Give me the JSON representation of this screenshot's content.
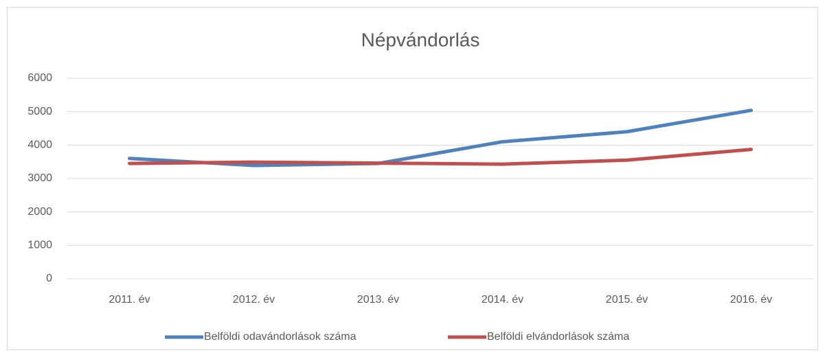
{
  "chart_data": {
    "type": "line",
    "title": "Népvándorlás",
    "categories": [
      "2011. év",
      "2012. év",
      "2013. év",
      "2014. év",
      "2015. év",
      "2016. év"
    ],
    "series": [
      {
        "name": "Belföldi odavándorlások száma",
        "color": "#4f81bd",
        "values": [
          3600,
          3390,
          3450,
          4100,
          4400,
          5040
        ]
      },
      {
        "name": "Belföldi elvándorlások száma",
        "color": "#c0504d",
        "values": [
          3450,
          3490,
          3460,
          3430,
          3550,
          3870
        ]
      }
    ],
    "ylim": [
      0,
      6000
    ],
    "yticks": [
      0,
      1000,
      2000,
      3000,
      4000,
      5000,
      6000
    ],
    "grid": true,
    "legend": "bottom"
  }
}
